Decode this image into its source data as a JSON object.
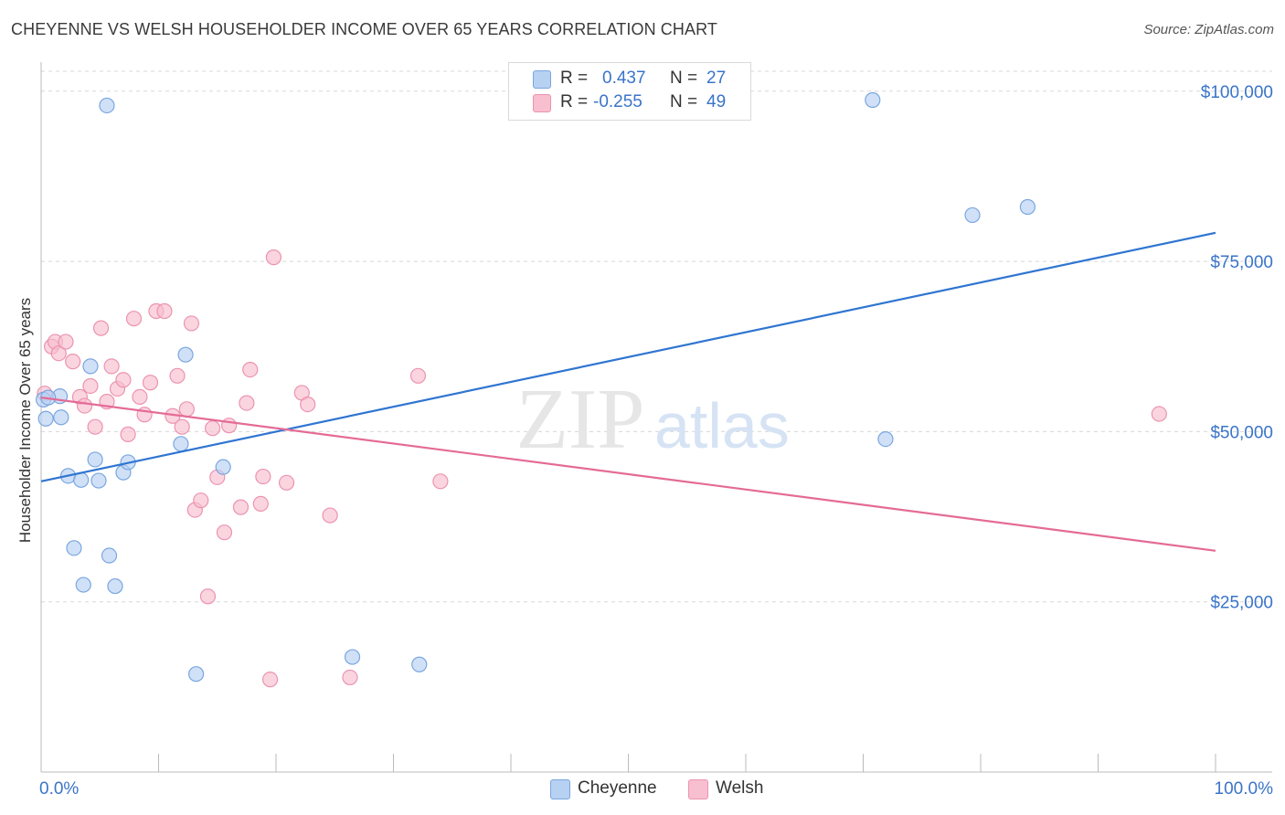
{
  "title": "CHEYENNE VS WELSH HOUSEHOLDER INCOME OVER 65 YEARS CORRELATION CHART",
  "source": "Source: ZipAtlas.com",
  "watermark": {
    "zip": "ZIP",
    "atlas": "atlas"
  },
  "colors": {
    "cheyenne_fill": "#b7d1f2",
    "cheyenne_stroke": "#7aa6e0",
    "cheyenne_line": "#2f75d1",
    "welsh_fill": "#f7bfd0",
    "welsh_stroke": "#ec93b0",
    "welsh_line": "#e46b96",
    "axis_label": "#3a74c9",
    "grid": "#d8d8d8"
  },
  "legend": {
    "rows": [
      {
        "r_label": "R =",
        "r_value": "0.437",
        "n_label": "N =",
        "n_value": "27"
      },
      {
        "r_label": "R =",
        "r_value": "-0.255",
        "n_label": "N =",
        "n_value": "49"
      }
    ]
  },
  "bottom_legend": {
    "cheyenne": "Cheyenne",
    "welsh": "Welsh"
  },
  "chart_data": {
    "type": "scatter",
    "title": "CHEYENNE VS WELSH HOUSEHOLDER INCOME OVER 65 YEARS CORRELATION CHART",
    "xlabel": "",
    "ylabel": "Householder Income Over 65 years",
    "xlim": [
      0,
      100
    ],
    "ylim": [
      0,
      104000
    ],
    "x_tick_labels": [
      "0.0%",
      "100.0%"
    ],
    "y_ticks": [
      25000,
      50000,
      75000,
      100000
    ],
    "y_tick_labels": [
      "$25,000",
      "$50,000",
      "$75,000",
      "$100,000"
    ],
    "grid": true,
    "series": [
      {
        "name": "Cheyenne",
        "r": 0.437,
        "n": 27,
        "trend": {
          "x": [
            0,
            100
          ],
          "y": [
            42700,
            79200
          ]
        },
        "points": [
          {
            "x": 0.4,
            "y": 51900
          },
          {
            "x": 1.6,
            "y": 55200
          },
          {
            "x": 1.7,
            "y": 52100
          },
          {
            "x": 2.3,
            "y": 43500
          },
          {
            "x": 2.8,
            "y": 32900
          },
          {
            "x": 3.4,
            "y": 42900
          },
          {
            "x": 3.6,
            "y": 27500
          },
          {
            "x": 4.2,
            "y": 59600
          },
          {
            "x": 4.6,
            "y": 45900
          },
          {
            "x": 4.9,
            "y": 42800
          },
          {
            "x": 5.6,
            "y": 97900
          },
          {
            "x": 5.8,
            "y": 31800
          },
          {
            "x": 6.3,
            "y": 27300
          },
          {
            "x": 7.0,
            "y": 44000
          },
          {
            "x": 7.4,
            "y": 45500
          },
          {
            "x": 11.9,
            "y": 48200
          },
          {
            "x": 12.3,
            "y": 61300
          },
          {
            "x": 13.2,
            "y": 14400
          },
          {
            "x": 15.5,
            "y": 44800
          },
          {
            "x": 26.5,
            "y": 16900
          },
          {
            "x": 32.2,
            "y": 15800
          },
          {
            "x": 70.8,
            "y": 98700
          },
          {
            "x": 71.9,
            "y": 48900
          },
          {
            "x": 79.3,
            "y": 81800
          },
          {
            "x": 84.0,
            "y": 83000
          },
          {
            "x": 0.2,
            "y": 54700
          },
          {
            "x": 0.6,
            "y": 55000
          }
        ]
      },
      {
        "name": "Welsh",
        "r": -0.255,
        "n": 49,
        "trend": {
          "x": [
            0,
            100
          ],
          "y": [
            55000,
            32500
          ]
        },
        "points": [
          {
            "x": 0.3,
            "y": 55600
          },
          {
            "x": 0.9,
            "y": 62500
          },
          {
            "x": 1.2,
            "y": 63200
          },
          {
            "x": 1.5,
            "y": 61500
          },
          {
            "x": 2.1,
            "y": 63200
          },
          {
            "x": 2.7,
            "y": 60300
          },
          {
            "x": 3.3,
            "y": 55100
          },
          {
            "x": 3.7,
            "y": 53800
          },
          {
            "x": 4.2,
            "y": 56700
          },
          {
            "x": 4.6,
            "y": 50700
          },
          {
            "x": 5.1,
            "y": 65200
          },
          {
            "x": 5.6,
            "y": 54400
          },
          {
            "x": 6.0,
            "y": 59600
          },
          {
            "x": 6.5,
            "y": 56300
          },
          {
            "x": 7.0,
            "y": 57600
          },
          {
            "x": 7.4,
            "y": 49600
          },
          {
            "x": 7.9,
            "y": 66600
          },
          {
            "x": 8.4,
            "y": 55100
          },
          {
            "x": 8.8,
            "y": 52500
          },
          {
            "x": 9.3,
            "y": 57200
          },
          {
            "x": 9.8,
            "y": 67700
          },
          {
            "x": 10.5,
            "y": 67700
          },
          {
            "x": 11.2,
            "y": 52300
          },
          {
            "x": 11.6,
            "y": 58200
          },
          {
            "x": 12.0,
            "y": 50700
          },
          {
            "x": 12.4,
            "y": 53300
          },
          {
            "x": 12.8,
            "y": 65900
          },
          {
            "x": 13.1,
            "y": 38500
          },
          {
            "x": 13.6,
            "y": 39900
          },
          {
            "x": 14.2,
            "y": 25800
          },
          {
            "x": 14.6,
            "y": 50500
          },
          {
            "x": 15.0,
            "y": 43300
          },
          {
            "x": 15.6,
            "y": 35200
          },
          {
            "x": 16.0,
            "y": 50900
          },
          {
            "x": 17.0,
            "y": 38900
          },
          {
            "x": 17.5,
            "y": 54200
          },
          {
            "x": 17.8,
            "y": 59100
          },
          {
            "x": 18.7,
            "y": 39400
          },
          {
            "x": 18.9,
            "y": 43400
          },
          {
            "x": 19.5,
            "y": 13600
          },
          {
            "x": 19.8,
            "y": 75600
          },
          {
            "x": 20.9,
            "y": 42500
          },
          {
            "x": 22.2,
            "y": 55700
          },
          {
            "x": 22.7,
            "y": 54000
          },
          {
            "x": 24.6,
            "y": 37700
          },
          {
            "x": 26.3,
            "y": 13900
          },
          {
            "x": 32.1,
            "y": 58200
          },
          {
            "x": 34.0,
            "y": 42700
          },
          {
            "x": 95.2,
            "y": 52600
          }
        ]
      }
    ]
  }
}
